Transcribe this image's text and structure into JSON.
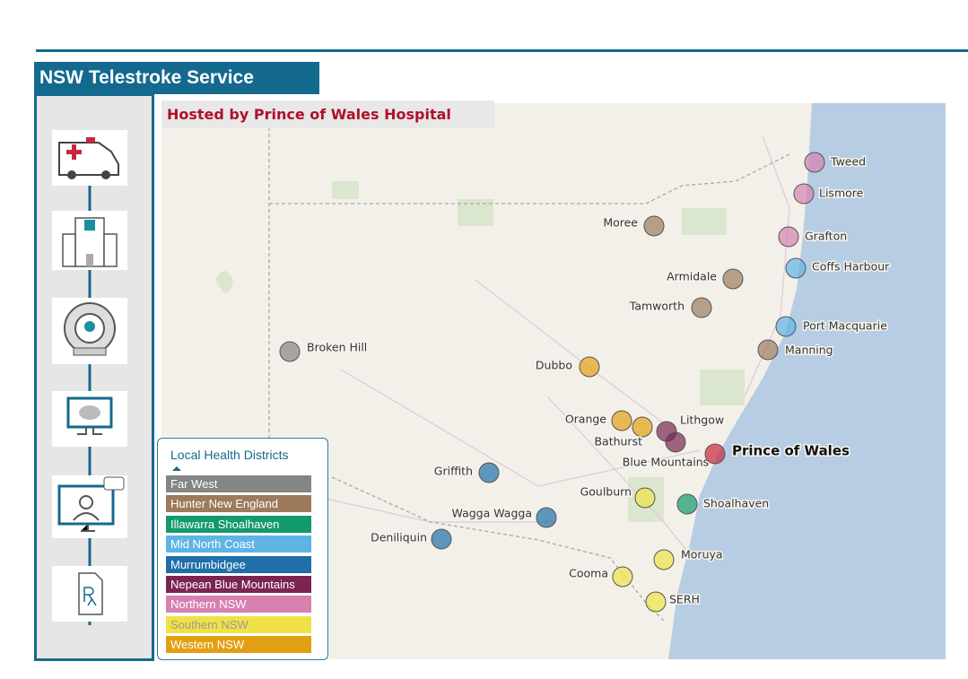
{
  "header": {
    "title": "NSW Telestroke Service",
    "subtitle": "Hosted by Prince of Wales Hospital"
  },
  "legend": {
    "title": "Local Health Districts",
    "items": [
      {
        "label": "Far West",
        "color": "#858585"
      },
      {
        "label": "Hunter New England",
        "color": "#9c7a5b"
      },
      {
        "label": "Illawarra Shoalhaven",
        "color": "#12996c"
      },
      {
        "label": "Mid North Coast",
        "color": "#5fb4e4"
      },
      {
        "label": "Murrumbidgee",
        "color": "#1f6fa8"
      },
      {
        "label": "Nepean Blue Mountains",
        "color": "#7b2553"
      },
      {
        "label": "Northern NSW",
        "color": "#d681b0"
      },
      {
        "label": "Southern NSW",
        "color": "#f0e246"
      },
      {
        "label": "Western NSW",
        "color": "#e39f12"
      }
    ]
  },
  "sites": [
    {
      "label": "Tweed",
      "color": "#d681b0"
    },
    {
      "label": "Lismore",
      "color": "#d681b0"
    },
    {
      "label": "Grafton",
      "color": "#d681b0"
    },
    {
      "label": "Coffs Harbour",
      "color": "#5fb4e4"
    },
    {
      "label": "Port Macquarie",
      "color": "#5fb4e4"
    },
    {
      "label": "Manning",
      "color": "#9c7a5b"
    },
    {
      "label": "Moree",
      "color": "#9c7a5b"
    },
    {
      "label": "Armidale",
      "color": "#9c7a5b"
    },
    {
      "label": "Tamworth",
      "color": "#9c7a5b"
    },
    {
      "label": "Broken Hill",
      "color": "#858585"
    },
    {
      "label": "Dubbo",
      "color": "#e39f12"
    },
    {
      "label": "Orange",
      "color": "#e39f12"
    },
    {
      "label": "Bathurst",
      "color": "#e39f12"
    },
    {
      "label": "Lithgow",
      "color": "#7b2553"
    },
    {
      "label": "Blue Mountains",
      "color": "#7b2553"
    },
    {
      "label": "Prince of Wales",
      "color": "#c8283c"
    },
    {
      "label": "Griffith",
      "color": "#1f6fa8"
    },
    {
      "label": "Wagga Wagga",
      "color": "#1f6fa8"
    },
    {
      "label": "Deniliquin",
      "color": "#1f6fa8"
    },
    {
      "label": "Goulburn",
      "color": "#f0e246"
    },
    {
      "label": "Shoalhaven",
      "color": "#12996c"
    },
    {
      "label": "Moruya",
      "color": "#f0e246"
    },
    {
      "label": "Cooma",
      "color": "#f0e246"
    },
    {
      "label": "SERH",
      "color": "#f0e246"
    }
  ]
}
